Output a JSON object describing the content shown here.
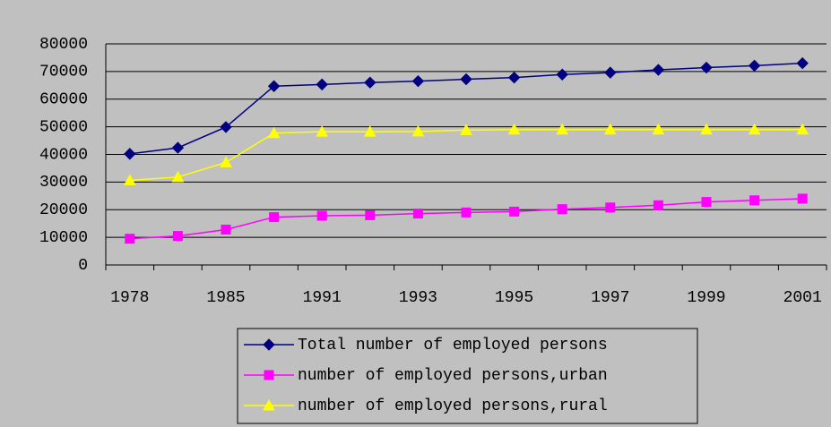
{
  "chart_data": {
    "type": "line",
    "categories": [
      "1978",
      null,
      "1985",
      null,
      "1991",
      null,
      "1993",
      null,
      "1995",
      null,
      "1997",
      null,
      "1999",
      null,
      "2001"
    ],
    "series": [
      {
        "name": "Total number of employed persons",
        "color": "#000080",
        "marker": "diamond",
        "values": [
          40200,
          42400,
          49900,
          64700,
          65300,
          66000,
          66500,
          67200,
          67800,
          68900,
          69600,
          70600,
          71400,
          72100,
          73000
        ]
      },
      {
        "name": "number of employed persons,urban",
        "color": "#ff00ff",
        "marker": "square",
        "values": [
          9500,
          10500,
          12800,
          17300,
          17800,
          18000,
          18600,
          19000,
          19300,
          20200,
          20800,
          21600,
          22800,
          23400,
          24000
        ]
      },
      {
        "name": "number of employed persons,rural",
        "color": "#ffff00",
        "marker": "triangle",
        "values": [
          30600,
          31800,
          37100,
          47700,
          48200,
          48200,
          48300,
          48800,
          49000,
          49000,
          49000,
          49000,
          49000,
          49000,
          49000
        ]
      }
    ],
    "ylim": [
      0,
      80000
    ],
    "yticks": [
      0,
      10000,
      20000,
      30000,
      40000,
      50000,
      60000,
      70000,
      80000
    ],
    "grid": true
  }
}
